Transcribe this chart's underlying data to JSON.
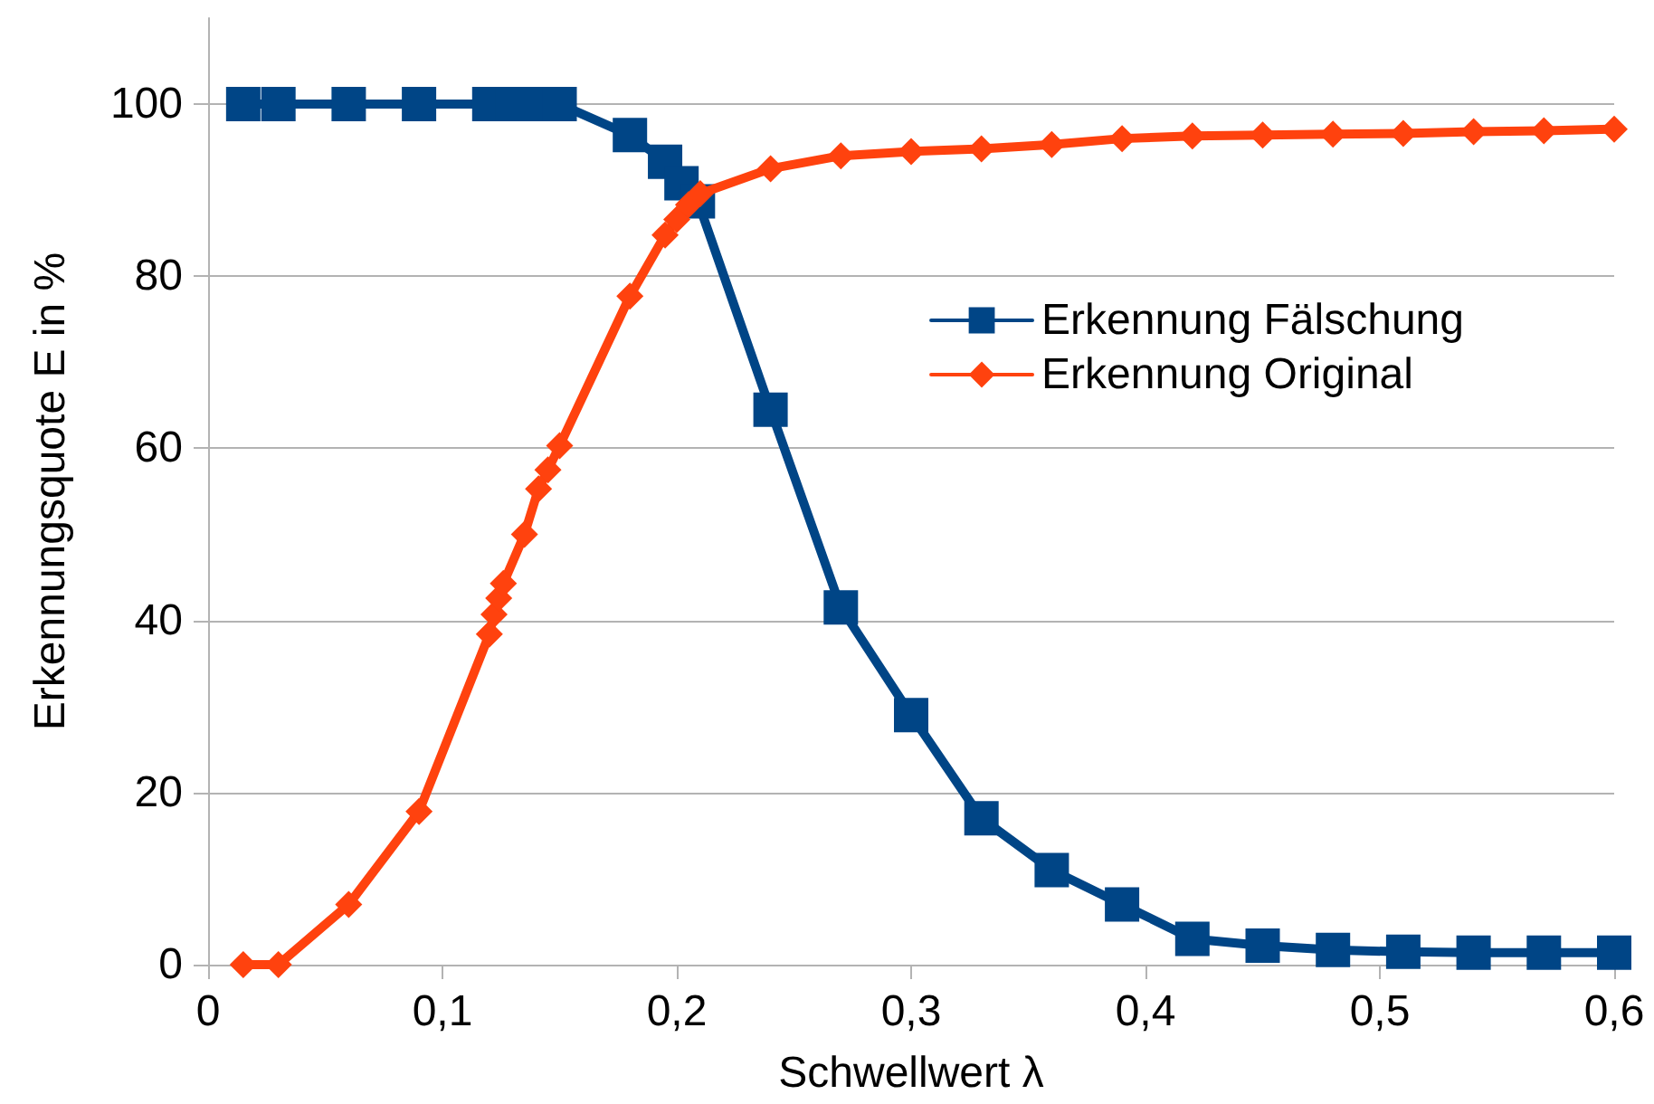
{
  "chart_data": {
    "type": "line",
    "xlabel": "Schwellwert λ",
    "ylabel": "Erkennungsquote E in %",
    "xlim": [
      0,
      0.6
    ],
    "xticks": [
      0,
      {
        "value": 0.1,
        "label": "0,1"
      },
      {
        "value": 0.2,
        "label": "0,2"
      },
      {
        "value": 0.3,
        "label": "0,3"
      },
      {
        "value": 0.4,
        "label": "0,4"
      },
      {
        "value": 0.5,
        "label": "0,5"
      },
      {
        "value": 0.6,
        "label": "0,6"
      }
    ],
    "ylim": [
      0,
      110
    ],
    "yticks": [
      0,
      20,
      40,
      60,
      80,
      100
    ],
    "grid": "y",
    "legend": "right",
    "line_style": "solid",
    "series": [
      {
        "name": "Erkennung Fälschung",
        "color": "#004586",
        "marker": "square",
        "x": [
          0.015,
          0.03,
          0.06,
          0.09,
          0.12,
          0.13,
          0.14,
          0.15,
          0.18,
          0.195,
          0.202,
          0.209,
          0.24,
          0.27,
          0.3,
          0.33,
          0.36,
          0.39,
          0.42,
          0.45,
          0.48,
          0.51,
          0.54,
          0.57,
          0.6
        ],
        "values": [
          100,
          100,
          100,
          100,
          100,
          100,
          100,
          100,
          96.4,
          93.3,
          90.8,
          88.7,
          64.5,
          41.5,
          29,
          17,
          11,
          7,
          3,
          2.2,
          1.7,
          1.5,
          1.4,
          1.4,
          1.4
        ]
      },
      {
        "name": "Erkennung Original",
        "color": "#ff420e",
        "marker": "diamond",
        "x": [
          0.015,
          0.03,
          0.06,
          0.09,
          0.12,
          0.122,
          0.124,
          0.126,
          0.135,
          0.141,
          0.145,
          0.15,
          0.18,
          0.195,
          0.2,
          0.205,
          0.21,
          0.24,
          0.27,
          0.3,
          0.33,
          0.36,
          0.39,
          0.42,
          0.45,
          0.48,
          0.51,
          0.54,
          0.57,
          0.6
        ],
        "values": [
          0,
          0,
          7,
          17.8,
          38.4,
          40.7,
          42.6,
          44.3,
          50,
          55.3,
          57.5,
          60.3,
          77.7,
          84.8,
          86.6,
          88.3,
          89.6,
          92.5,
          94,
          94.5,
          94.8,
          95.3,
          96,
          96.3,
          96.4,
          96.5,
          96.6,
          96.8,
          96.9,
          97.1
        ]
      }
    ]
  }
}
